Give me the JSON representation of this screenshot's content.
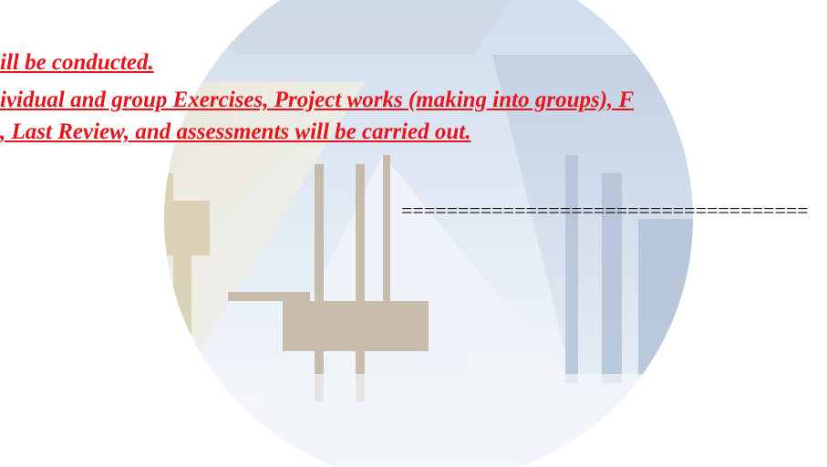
{
  "lines": [
    "ill be conducted.",
    "ividual and group Exercises, Project works (making into groups), F",
    ", Last Review, and assessments will be carried out."
  ],
  "separator": "===================================="
}
